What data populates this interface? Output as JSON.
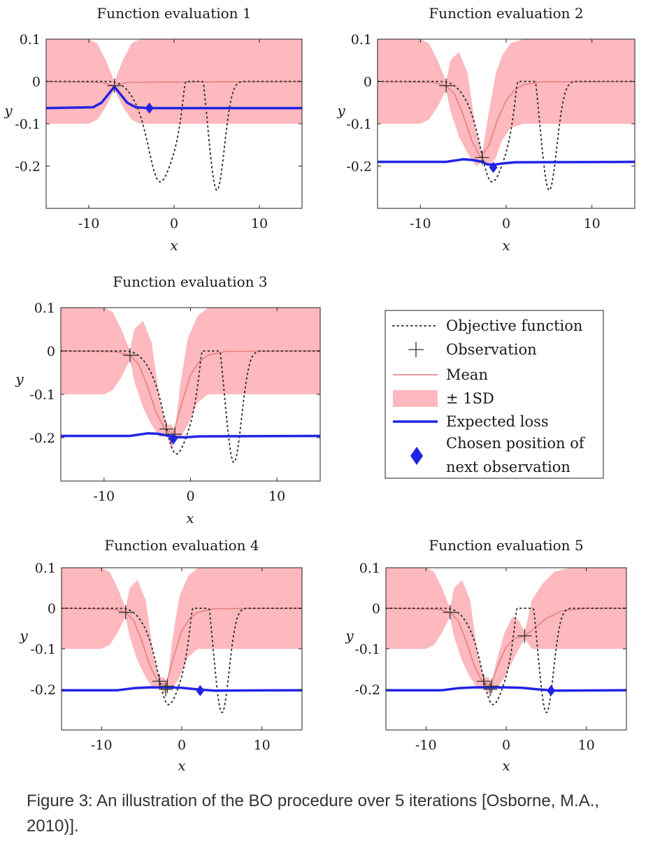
{
  "caption": "Figure 3: An illustration of the BO procedure over 5 iterations [Osborne, M.A., 2010)].",
  "colors": {
    "objective": "#333333",
    "observation": "#333333",
    "mean": "#e07a78",
    "band": "#fdb9bd",
    "expected_loss": "#2323e6",
    "chosen": "#2323e6"
  },
  "legend": {
    "objective": "Objective function",
    "observation": "Observation",
    "mean": "Mean",
    "sd": "± 1SD",
    "expected_loss": "Expected loss",
    "chosen_line1": "Chosen position of",
    "chosen_line2": "next observation"
  },
  "chart_data": [
    {
      "type": "line",
      "title": "Function evaluation 1",
      "xlabel": "x",
      "ylabel": "y",
      "xlim": [
        -15,
        15
      ],
      "ylim": [
        -0.3,
        0.1
      ],
      "xticks": [
        -10,
        0,
        10
      ],
      "yticks": [
        0.1,
        0,
        -0.1,
        -0.2
      ],
      "xtick_labels": [
        "-10",
        "0",
        "10"
      ],
      "ytick_labels": [
        "0.1",
        "0",
        "-0.1",
        "-0.2"
      ],
      "observations": [
        [
          -7,
          -0.01
        ]
      ],
      "mean": [
        [
          -15,
          0
        ],
        [
          -8.5,
          -0.002
        ],
        [
          -7,
          -0.01
        ],
        [
          -5.5,
          -0.002
        ],
        [
          15,
          0
        ]
      ],
      "band": [
        [
          -15,
          0.1,
          -0.1
        ],
        [
          -10,
          0.1,
          -0.1
        ],
        [
          -9,
          0.09,
          -0.09
        ],
        [
          -8,
          0.05,
          -0.06
        ],
        [
          -7,
          0,
          -0.02
        ],
        [
          -6,
          0.05,
          -0.06
        ],
        [
          -5,
          0.09,
          -0.09
        ],
        [
          -4,
          0.1,
          -0.1
        ],
        [
          15,
          0.1,
          -0.1
        ]
      ],
      "expected_loss": [
        [
          -15,
          -0.063
        ],
        [
          -9.5,
          -0.061
        ],
        [
          -8.5,
          -0.05
        ],
        [
          -7.5,
          -0.025
        ],
        [
          -7,
          -0.012
        ],
        [
          -6.5,
          -0.025
        ],
        [
          -5.5,
          -0.05
        ],
        [
          -4.5,
          -0.061
        ],
        [
          -3,
          -0.063
        ],
        [
          15,
          -0.063
        ]
      ],
      "chosen": [
        -2.9,
        -0.063
      ]
    },
    {
      "type": "line",
      "title": "Function evaluation 2",
      "xlabel": "x",
      "ylabel": "y",
      "xlim": [
        -15,
        15
      ],
      "ylim": [
        -0.3,
        0.1
      ],
      "xticks": [
        -10,
        0,
        10
      ],
      "yticks": [
        0.1,
        0,
        -0.1,
        -0.2
      ],
      "xtick_labels": [
        "-10",
        "0",
        "10"
      ],
      "ytick_labels": [
        "0.1",
        "0",
        "-0.1",
        "-0.2"
      ],
      "observations": [
        [
          -7,
          -0.01
        ],
        [
          -2.8,
          -0.18
        ]
      ],
      "mean": [
        [
          -15,
          0
        ],
        [
          -8.5,
          -0.002
        ],
        [
          -7,
          -0.01
        ],
        [
          -6,
          -0.03
        ],
        [
          -5,
          -0.08
        ],
        [
          -4,
          -0.14
        ],
        [
          -3,
          -0.18
        ],
        [
          -2,
          -0.15
        ],
        [
          -1,
          -0.09
        ],
        [
          0,
          -0.045
        ],
        [
          1,
          -0.02
        ],
        [
          2,
          -0.008
        ],
        [
          4,
          -0.001
        ],
        [
          15,
          0
        ]
      ],
      "band": [
        [
          -15,
          0.1,
          -0.1
        ],
        [
          -10,
          0.1,
          -0.1
        ],
        [
          -9,
          0.09,
          -0.09
        ],
        [
          -8,
          0.05,
          -0.06
        ],
        [
          -7,
          0,
          -0.02
        ],
        [
          -6.5,
          0.05,
          -0.07
        ],
        [
          -5.5,
          0.07,
          -0.13
        ],
        [
          -4.5,
          0.02,
          -0.17
        ],
        [
          -3.5,
          -0.12,
          -0.2
        ],
        [
          -2.8,
          -0.17,
          -0.19
        ],
        [
          -2,
          -0.07,
          -0.2
        ],
        [
          -1.2,
          0.02,
          -0.18
        ],
        [
          -0.5,
          0.06,
          -0.14
        ],
        [
          0.5,
          0.09,
          -0.11
        ],
        [
          2,
          0.1,
          -0.1
        ],
        [
          15,
          0.1,
          -0.1
        ]
      ],
      "expected_loss": [
        [
          -15,
          -0.19
        ],
        [
          -7,
          -0.19
        ],
        [
          -5,
          -0.184
        ],
        [
          -3.8,
          -0.186
        ],
        [
          -2.8,
          -0.19
        ],
        [
          -2.2,
          -0.196
        ],
        [
          -1.5,
          -0.197
        ],
        [
          -0.5,
          -0.194
        ],
        [
          1,
          -0.191
        ],
        [
          15,
          -0.19
        ]
      ],
      "chosen": [
        -1.5,
        -0.203
      ]
    },
    {
      "type": "line",
      "title": "Function evaluation 3",
      "xlabel": "x",
      "ylabel": "y",
      "xlim": [
        -15,
        15
      ],
      "ylim": [
        -0.3,
        0.1
      ],
      "xticks": [
        -10,
        0,
        10
      ],
      "yticks": [
        0.1,
        0,
        -0.1,
        -0.2
      ],
      "xtick_labels": [
        "-10",
        "0",
        "10"
      ],
      "ytick_labels": [
        "0.1",
        "0",
        "-0.1",
        "-0.2"
      ],
      "observations": [
        [
          -7,
          -0.01
        ],
        [
          -2.8,
          -0.18
        ],
        [
          -1.8,
          -0.192
        ]
      ],
      "mean": [
        [
          -15,
          0
        ],
        [
          -8.5,
          -0.002
        ],
        [
          -7,
          -0.01
        ],
        [
          -6,
          -0.03
        ],
        [
          -5,
          -0.08
        ],
        [
          -4,
          -0.14
        ],
        [
          -3,
          -0.18
        ],
        [
          -2,
          -0.19
        ],
        [
          -1,
          -0.12
        ],
        [
          0,
          -0.055
        ],
        [
          1,
          -0.025
        ],
        [
          2,
          -0.01
        ],
        [
          4,
          -0.001
        ],
        [
          15,
          0
        ]
      ],
      "band": [
        [
          -15,
          0.1,
          -0.1
        ],
        [
          -10,
          0.1,
          -0.1
        ],
        [
          -9,
          0.09,
          -0.09
        ],
        [
          -8,
          0.05,
          -0.06
        ],
        [
          -7,
          0,
          -0.02
        ],
        [
          -6.5,
          0.05,
          -0.07
        ],
        [
          -5.5,
          0.07,
          -0.13
        ],
        [
          -4.5,
          0.02,
          -0.17
        ],
        [
          -3.5,
          -0.12,
          -0.2
        ],
        [
          -2.8,
          -0.17,
          -0.19
        ],
        [
          -2.2,
          -0.17,
          -0.23
        ],
        [
          -1.8,
          -0.185,
          -0.2
        ],
        [
          -1.2,
          -0.08,
          -0.2
        ],
        [
          -0.3,
          0.03,
          -0.17
        ],
        [
          0.8,
          0.08,
          -0.12
        ],
        [
          2,
          0.1,
          -0.1
        ],
        [
          15,
          0.1,
          -0.1
        ]
      ],
      "expected_loss": [
        [
          -15,
          -0.196
        ],
        [
          -7,
          -0.196
        ],
        [
          -5,
          -0.19
        ],
        [
          -3.8,
          -0.191
        ],
        [
          -2.5,
          -0.196
        ],
        [
          -1.5,
          -0.199
        ],
        [
          -0.5,
          -0.199
        ],
        [
          1,
          -0.197
        ],
        [
          15,
          -0.196
        ]
      ],
      "chosen": [
        -2.0,
        -0.203
      ]
    },
    {
      "type": "line",
      "title": "Function evaluation 4",
      "xlabel": "x",
      "ylabel": "y",
      "xlim": [
        -15,
        15
      ],
      "ylim": [
        -0.3,
        0.1
      ],
      "xticks": [
        -10,
        0,
        10
      ],
      "yticks": [
        0.1,
        0,
        -0.1,
        -0.2
      ],
      "xtick_labels": [
        "-10",
        "0",
        "10"
      ],
      "ytick_labels": [
        "0.1",
        "0",
        "-0.1",
        "-0.2"
      ],
      "observations": [
        [
          -7,
          -0.01
        ],
        [
          -2.8,
          -0.18
        ],
        [
          -1.8,
          -0.192
        ],
        [
          -2.0,
          -0.2
        ]
      ],
      "mean": [
        [
          -15,
          0
        ],
        [
          -8.5,
          -0.002
        ],
        [
          -7,
          -0.01
        ],
        [
          -6,
          -0.03
        ],
        [
          -5,
          -0.08
        ],
        [
          -4,
          -0.14
        ],
        [
          -3,
          -0.18
        ],
        [
          -2,
          -0.19
        ],
        [
          -1,
          -0.12
        ],
        [
          0,
          -0.055
        ],
        [
          1,
          -0.025
        ],
        [
          2,
          -0.01
        ],
        [
          4,
          -0.001
        ],
        [
          15,
          0
        ]
      ],
      "band": [
        [
          -15,
          0.1,
          -0.1
        ],
        [
          -10,
          0.1,
          -0.1
        ],
        [
          -9,
          0.09,
          -0.09
        ],
        [
          -8,
          0.05,
          -0.06
        ],
        [
          -7,
          0,
          -0.02
        ],
        [
          -6.5,
          0.05,
          -0.07
        ],
        [
          -5.5,
          0.07,
          -0.13
        ],
        [
          -4.5,
          0.02,
          -0.17
        ],
        [
          -3.5,
          -0.12,
          -0.2
        ],
        [
          -2.8,
          -0.17,
          -0.19
        ],
        [
          -2.2,
          -0.17,
          -0.21
        ],
        [
          -1.8,
          -0.185,
          -0.2
        ],
        [
          -1.2,
          -0.08,
          -0.2
        ],
        [
          -0.3,
          0.03,
          -0.17
        ],
        [
          0.8,
          0.08,
          -0.12
        ],
        [
          2,
          0.1,
          -0.1
        ],
        [
          15,
          0.1,
          -0.1
        ]
      ],
      "expected_loss": [
        [
          -15,
          -0.202
        ],
        [
          -8,
          -0.202
        ],
        [
          -6,
          -0.197
        ],
        [
          -4,
          -0.195
        ],
        [
          -2,
          -0.195
        ],
        [
          0,
          -0.196
        ],
        [
          2,
          -0.2
        ],
        [
          4,
          -0.203
        ],
        [
          15,
          -0.202
        ]
      ],
      "chosen": [
        2.3,
        -0.203
      ]
    },
    {
      "type": "line",
      "title": "Function evaluation 5",
      "xlabel": "x",
      "ylabel": "y",
      "xlim": [
        -15,
        15
      ],
      "ylim": [
        -0.3,
        0.1
      ],
      "xticks": [
        -10,
        0,
        10
      ],
      "yticks": [
        0.1,
        0,
        -0.1,
        -0.2
      ],
      "xtick_labels": [
        "-10",
        "0",
        "10"
      ],
      "ytick_labels": [
        "0.1",
        "0",
        "-0.1",
        "-0.2"
      ],
      "observations": [
        [
          -7,
          -0.01
        ],
        [
          -2.8,
          -0.18
        ],
        [
          -1.8,
          -0.192
        ],
        [
          -2.0,
          -0.2
        ],
        [
          2.3,
          -0.068
        ]
      ],
      "mean": [
        [
          -15,
          0
        ],
        [
          -8.5,
          -0.002
        ],
        [
          -7,
          -0.01
        ],
        [
          -6,
          -0.03
        ],
        [
          -5,
          -0.08
        ],
        [
          -4,
          -0.14
        ],
        [
          -3,
          -0.18
        ],
        [
          -2,
          -0.19
        ],
        [
          -1,
          -0.14
        ],
        [
          0,
          -0.095
        ],
        [
          1,
          -0.075
        ],
        [
          2.3,
          -0.068
        ],
        [
          3.5,
          -0.05
        ],
        [
          5,
          -0.025
        ],
        [
          7,
          -0.006
        ],
        [
          10,
          0
        ],
        [
          15,
          0
        ]
      ],
      "band": [
        [
          -15,
          0.1,
          -0.1
        ],
        [
          -10,
          0.1,
          -0.1
        ],
        [
          -9,
          0.09,
          -0.09
        ],
        [
          -8,
          0.05,
          -0.06
        ],
        [
          -7,
          0,
          -0.02
        ],
        [
          -6.5,
          0.05,
          -0.07
        ],
        [
          -5.5,
          0.07,
          -0.13
        ],
        [
          -4.5,
          0.02,
          -0.17
        ],
        [
          -3.5,
          -0.12,
          -0.2
        ],
        [
          -2.8,
          -0.17,
          -0.19
        ],
        [
          -2.2,
          -0.17,
          -0.21
        ],
        [
          -1.8,
          -0.185,
          -0.2
        ],
        [
          -1.2,
          -0.13,
          -0.2
        ],
        [
          -0.2,
          -0.06,
          -0.17
        ],
        [
          0.8,
          -0.02,
          -0.13
        ],
        [
          1.6,
          -0.03,
          -0.1
        ],
        [
          2.3,
          -0.06,
          -0.075
        ],
        [
          3.2,
          0.02,
          -0.1
        ],
        [
          4.5,
          0.06,
          -0.1
        ],
        [
          6,
          0.09,
          -0.1
        ],
        [
          8,
          0.1,
          -0.1
        ],
        [
          15,
          0.1,
          -0.1
        ]
      ],
      "expected_loss": [
        [
          -15,
          -0.202
        ],
        [
          -8,
          -0.202
        ],
        [
          -6,
          -0.197
        ],
        [
          -4,
          -0.195
        ],
        [
          -2,
          -0.195
        ],
        [
          0,
          -0.195
        ],
        [
          2,
          -0.196
        ],
        [
          4,
          -0.2
        ],
        [
          6,
          -0.203
        ],
        [
          15,
          -0.202
        ]
      ],
      "chosen": [
        5.6,
        -0.203
      ]
    }
  ]
}
